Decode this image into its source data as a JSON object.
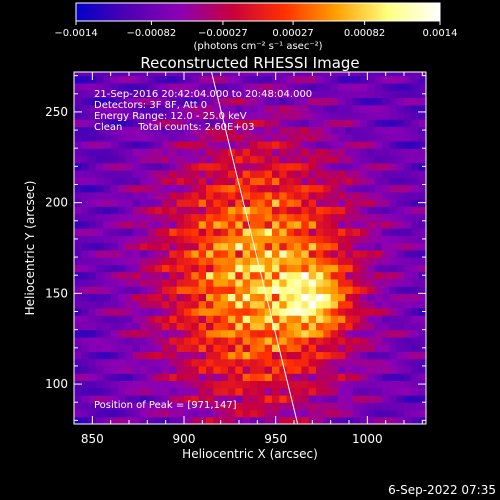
{
  "chart_data": {
    "type": "heatmap",
    "title": "Reconstructed RHESSI Image",
    "xlabel": "Heliocentric X (arcsec)",
    "ylabel": "Heliocentric Y (arcsec)",
    "xlim": [
      840,
      1032
    ],
    "ylim": [
      78,
      272
    ],
    "xticks": [
      850,
      900,
      950,
      1000
    ],
    "yticks": [
      100,
      150,
      200,
      250
    ],
    "colorbar": {
      "min": -0.0014,
      "max": 0.0014,
      "tick_labels": [
        "−0.0014",
        "−0.00082",
        "−0.00027",
        "0.00027",
        "0.00082",
        "0.0014"
      ],
      "tick_values": [
        -0.0014,
        -0.00082,
        -0.00027,
        0.00027,
        0.00082,
        0.0014
      ],
      "units_label": "(photons cm⁻² s⁻¹ asec⁻²)",
      "colors": [
        "#0000c8",
        "#5000b4",
        "#8c00b4",
        "#c8003c",
        "#ff3000",
        "#ffa000",
        "#ffff80",
        "#ffffff"
      ]
    },
    "annotations": [
      "21-Sep-2016 20:42:04.000 to 20:48:04.000",
      "Detectors: 3F 8F, Att 0",
      "Energy Range: 12.0 - 25.0 keV",
      "Clean     Total counts: 2.60E+03"
    ],
    "peak_label": "Position of Peak = [971,147]",
    "peak": [
      971,
      147
    ],
    "source_center": [
      940,
      160
    ],
    "limb_line": [
      [
        915,
        272
      ],
      [
        962,
        78
      ]
    ],
    "pixel_size_arcsec": 4
  },
  "timestamp": "6-Sep-2022 07:35"
}
